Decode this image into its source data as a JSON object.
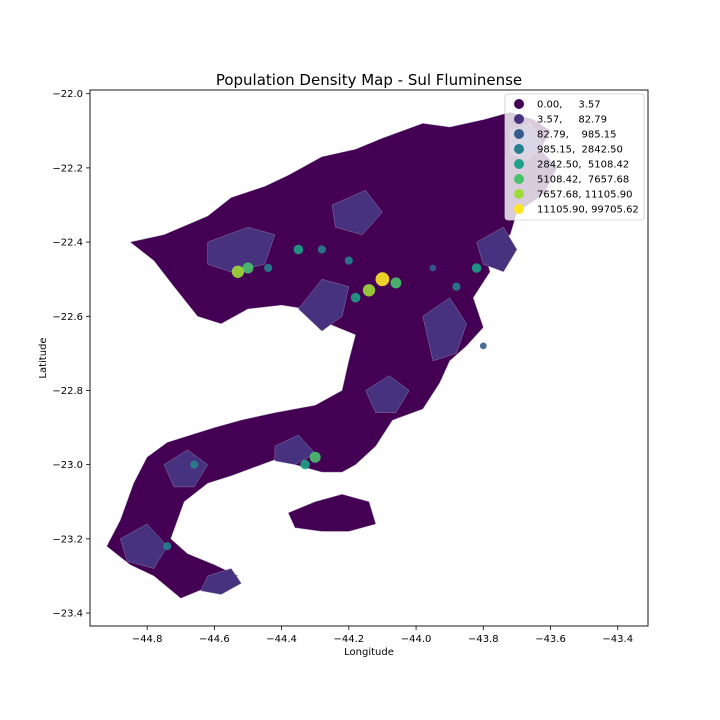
{
  "chart_data": {
    "type": "choropleth",
    "title": "Population Density Map - Sul Fluminense",
    "xlabel": "Longitude",
    "ylabel": "Latitude",
    "xlim": [
      -44.97,
      -43.31
    ],
    "ylim": [
      -23.435,
      -21.99
    ],
    "x_ticks": [
      -44.8,
      -44.6,
      -44.4,
      -44.2,
      -44.0,
      -43.8,
      -43.6,
      -43.4
    ],
    "x_tick_labels": [
      "−44.8",
      "−44.6",
      "−44.4",
      "−44.2",
      "−44.0",
      "−43.8",
      "−43.6",
      "−43.4"
    ],
    "y_ticks": [
      -22.0,
      -22.2,
      -22.4,
      -22.6,
      -22.8,
      -23.0,
      -23.2,
      -23.4
    ],
    "y_tick_labels": [
      "−22.0",
      "−22.2",
      "−22.4",
      "−22.6",
      "−22.8",
      "−23.0",
      "−23.2",
      "−23.4"
    ],
    "legend_position": "top-right",
    "legend": [
      {
        "label": "0.00,     3.57",
        "color": "#440154"
      },
      {
        "label": "3.57,     82.79",
        "color": "#46327e"
      },
      {
        "label": "82.79,    985.15",
        "color": "#365c8d"
      },
      {
        "label": "985.15,  2842.50",
        "color": "#277f8e"
      },
      {
        "label": "2842.50,  5108.42",
        "color": "#1fa187"
      },
      {
        "label": "5108.42,  7657.68",
        "color": "#4ac16d"
      },
      {
        "label": "7657.68, 11105.90",
        "color": "#a0da39"
      },
      {
        "label": "11105.90, 99705.62",
        "color": "#fde725"
      }
    ],
    "regions": [
      {
        "class": 0,
        "outline": [
          [
            -44.85,
            -22.4
          ],
          [
            -44.75,
            -22.38
          ],
          [
            -44.62,
            -22.33
          ],
          [
            -44.55,
            -22.28
          ],
          [
            -44.45,
            -22.25
          ],
          [
            -44.38,
            -22.22
          ],
          [
            -44.28,
            -22.17
          ],
          [
            -44.18,
            -22.15
          ],
          [
            -44.1,
            -22.12
          ],
          [
            -43.98,
            -22.08
          ],
          [
            -43.9,
            -22.09
          ],
          [
            -43.8,
            -22.07
          ],
          [
            -43.72,
            -22.05
          ],
          [
            -43.65,
            -22.07
          ],
          [
            -43.6,
            -22.1
          ],
          [
            -43.63,
            -22.15
          ],
          [
            -43.58,
            -22.2
          ],
          [
            -43.62,
            -22.27
          ],
          [
            -43.7,
            -22.32
          ],
          [
            -43.72,
            -22.38
          ],
          [
            -43.8,
            -22.42
          ],
          [
            -43.78,
            -22.48
          ],
          [
            -43.83,
            -22.55
          ],
          [
            -43.8,
            -22.63
          ],
          [
            -43.85,
            -22.68
          ],
          [
            -43.9,
            -22.72
          ],
          [
            -43.93,
            -22.78
          ],
          [
            -43.98,
            -22.85
          ],
          [
            -44.07,
            -22.88
          ],
          [
            -44.12,
            -22.95
          ],
          [
            -44.18,
            -23.0
          ],
          [
            -44.22,
            -23.02
          ],
          [
            -44.28,
            -23.02
          ],
          [
            -44.36,
            -23.0
          ],
          [
            -44.4,
            -22.98
          ],
          [
            -44.46,
            -23.0
          ],
          [
            -44.55,
            -23.03
          ],
          [
            -44.62,
            -23.05
          ],
          [
            -44.69,
            -23.1
          ],
          [
            -44.73,
            -23.2
          ],
          [
            -44.68,
            -23.24
          ],
          [
            -44.6,
            -23.27
          ],
          [
            -44.53,
            -23.3
          ],
          [
            -44.62,
            -23.33
          ],
          [
            -44.7,
            -23.36
          ],
          [
            -44.78,
            -23.3
          ],
          [
            -44.85,
            -23.27
          ],
          [
            -44.92,
            -23.22
          ],
          [
            -44.88,
            -23.15
          ],
          [
            -44.84,
            -23.05
          ],
          [
            -44.8,
            -22.98
          ],
          [
            -44.74,
            -22.94
          ],
          [
            -44.6,
            -22.9
          ],
          [
            -44.52,
            -22.88
          ],
          [
            -44.42,
            -22.86
          ],
          [
            -44.3,
            -22.84
          ],
          [
            -44.22,
            -22.8
          ],
          [
            -44.2,
            -22.72
          ],
          [
            -44.18,
            -22.65
          ],
          [
            -44.26,
            -22.62
          ],
          [
            -44.33,
            -22.58
          ],
          [
            -44.4,
            -22.57
          ],
          [
            -44.5,
            -22.58
          ],
          [
            -44.58,
            -22.62
          ],
          [
            -44.65,
            -22.6
          ],
          [
            -44.72,
            -22.52
          ],
          [
            -44.78,
            -22.45
          ]
        ]
      },
      {
        "class": 0,
        "outline": [
          [
            -44.38,
            -23.13
          ],
          [
            -44.3,
            -23.1
          ],
          [
            -44.22,
            -23.08
          ],
          [
            -44.14,
            -23.1
          ],
          [
            -44.12,
            -23.16
          ],
          [
            -44.2,
            -23.18
          ],
          [
            -44.28,
            -23.18
          ],
          [
            -44.36,
            -23.17
          ]
        ]
      },
      {
        "class": 1,
        "outline": [
          [
            -44.62,
            -22.4
          ],
          [
            -44.5,
            -22.36
          ],
          [
            -44.42,
            -22.38
          ],
          [
            -44.45,
            -22.46
          ],
          [
            -44.55,
            -22.48
          ],
          [
            -44.62,
            -22.46
          ]
        ]
      },
      {
        "class": 1,
        "outline": [
          [
            -44.35,
            -22.58
          ],
          [
            -44.28,
            -22.5
          ],
          [
            -44.2,
            -22.52
          ],
          [
            -44.22,
            -22.6
          ],
          [
            -44.28,
            -22.64
          ]
        ]
      },
      {
        "class": 1,
        "outline": [
          [
            -43.98,
            -22.6
          ],
          [
            -43.9,
            -22.55
          ],
          [
            -43.85,
            -22.62
          ],
          [
            -43.88,
            -22.7
          ],
          [
            -43.95,
            -22.72
          ]
        ]
      },
      {
        "class": 1,
        "outline": [
          [
            -44.15,
            -22.8
          ],
          [
            -44.08,
            -22.76
          ],
          [
            -44.02,
            -22.8
          ],
          [
            -44.06,
            -22.86
          ],
          [
            -44.12,
            -22.86
          ]
        ]
      },
      {
        "class": 1,
        "outline": [
          [
            -44.75,
            -23.0
          ],
          [
            -44.68,
            -22.96
          ],
          [
            -44.62,
            -23.0
          ],
          [
            -44.66,
            -23.06
          ],
          [
            -44.72,
            -23.06
          ]
        ]
      },
      {
        "class": 1,
        "outline": [
          [
            -44.88,
            -23.2
          ],
          [
            -44.8,
            -23.16
          ],
          [
            -44.74,
            -23.22
          ],
          [
            -44.78,
            -23.28
          ],
          [
            -44.86,
            -23.26
          ]
        ]
      },
      {
        "class": 1,
        "outline": [
          [
            -43.82,
            -22.4
          ],
          [
            -43.74,
            -22.36
          ],
          [
            -43.7,
            -22.42
          ],
          [
            -43.74,
            -22.48
          ],
          [
            -43.8,
            -22.46
          ]
        ]
      },
      {
        "class": 1,
        "outline": [
          [
            -44.25,
            -22.3
          ],
          [
            -44.15,
            -22.26
          ],
          [
            -44.1,
            -22.32
          ],
          [
            -44.16,
            -22.38
          ],
          [
            -44.24,
            -22.36
          ]
        ]
      },
      {
        "class": 1,
        "outline": [
          [
            -44.62,
            -23.3
          ],
          [
            -44.55,
            -23.28
          ],
          [
            -44.52,
            -23.32
          ],
          [
            -44.58,
            -23.35
          ],
          [
            -44.64,
            -23.34
          ]
        ]
      },
      {
        "class": 1,
        "outline": [
          [
            -43.72,
            -22.1
          ],
          [
            -43.66,
            -22.08
          ],
          [
            -43.62,
            -22.14
          ],
          [
            -43.67,
            -22.18
          ],
          [
            -43.72,
            -22.16
          ]
        ]
      },
      {
        "class": 1,
        "outline": [
          [
            -44.42,
            -22.95
          ],
          [
            -44.35,
            -22.92
          ],
          [
            -44.3,
            -22.97
          ],
          [
            -44.36,
            -23.0
          ],
          [
            -44.42,
            -22.99
          ]
        ]
      }
    ],
    "hotspots": [
      {
        "lon": -44.1,
        "lat": -22.5,
        "class": 7
      },
      {
        "lon": -44.14,
        "lat": -22.53,
        "class": 6
      },
      {
        "lon": -44.06,
        "lat": -22.51,
        "class": 5
      },
      {
        "lon": -44.18,
        "lat": -22.55,
        "class": 4
      },
      {
        "lon": -44.5,
        "lat": -22.47,
        "class": 5
      },
      {
        "lon": -44.53,
        "lat": -22.48,
        "class": 6
      },
      {
        "lon": -44.44,
        "lat": -22.47,
        "class": 3
      },
      {
        "lon": -44.35,
        "lat": -22.42,
        "class": 4
      },
      {
        "lon": -44.28,
        "lat": -22.42,
        "class": 3
      },
      {
        "lon": -43.82,
        "lat": -22.47,
        "class": 4
      },
      {
        "lon": -43.88,
        "lat": -22.52,
        "class": 3
      },
      {
        "lon": -44.3,
        "lat": -22.98,
        "class": 5
      },
      {
        "lon": -44.33,
        "lat": -23.0,
        "class": 4
      },
      {
        "lon": -44.66,
        "lat": -23.0,
        "class": 3
      },
      {
        "lon": -44.74,
        "lat": -23.22,
        "class": 3
      },
      {
        "lon": -44.2,
        "lat": -22.45,
        "class": 3
      },
      {
        "lon": -43.95,
        "lat": -22.47,
        "class": 2
      },
      {
        "lon": -43.8,
        "lat": -22.68,
        "class": 2
      }
    ]
  }
}
